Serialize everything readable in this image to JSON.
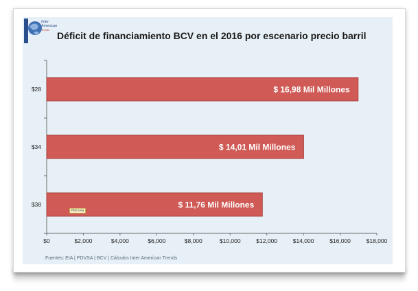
{
  "logo": {
    "line1": "Inter",
    "line2": "American",
    "line3": "Trends"
  },
  "source_note": "Fuentes: EIA | PDVSA | BCV | Cálculos Inter American Trends",
  "plot_area_tag": "Plot Area",
  "colors": {
    "bar": "#cf5a56",
    "bar_edge": "#a8403d",
    "panel": "#e7f0f6",
    "axis": "#6b6b6b",
    "gridline": "#c9d5de",
    "label_text": "#ffffff"
  },
  "chart_data": {
    "type": "bar",
    "orientation": "horizontal",
    "title": "Déficit de financiamiento BCV en el 2016 por escenario precio barril",
    "categories": [
      "$28",
      "$34",
      "$38"
    ],
    "values": [
      16980,
      14010,
      11760
    ],
    "data_labels": [
      "$ 16,98 Mil Millones",
      "$ 14,01 Mil Millones",
      "$ 11,76 Mil Millones"
    ],
    "xlim": [
      0,
      18000
    ],
    "xticks": [
      0,
      2000,
      4000,
      6000,
      8000,
      10000,
      12000,
      14000,
      16000,
      18000
    ],
    "xtick_labels": [
      "$0",
      "$2,000",
      "$4,000",
      "$6,000",
      "$8,000",
      "$10,000",
      "$12,000",
      "$14,000",
      "$16,000",
      "$18,000"
    ],
    "xlabel": "",
    "ylabel": "",
    "grid": false,
    "legend": "none"
  }
}
